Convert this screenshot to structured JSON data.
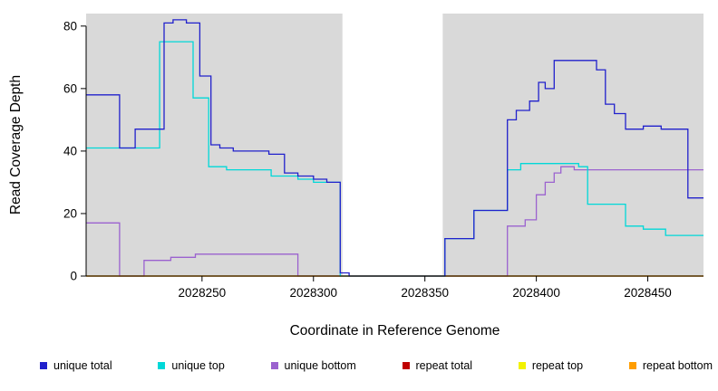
{
  "figure": {
    "panel_bg": "#d9d9d9",
    "gap_color": "#ffffff",
    "gap": {
      "x_start": 2028313,
      "x_end": 2028358
    }
  },
  "chart_data": {
    "type": "line",
    "step": "after",
    "title": "",
    "xlabel": "Coordinate in Reference Genome",
    "ylabel": "Read Coverage Depth",
    "xlim": [
      2028198,
      2028475
    ],
    "ylim": [
      0,
      84
    ],
    "x_ticks": [
      2028250,
      2028300,
      2028350,
      2028400,
      2028450
    ],
    "y_ticks": [
      0,
      20,
      40,
      60,
      80
    ],
    "grid": false,
    "legend_position": "bottom",
    "series": [
      {
        "name": "unique total",
        "color": "#2121cc",
        "points": [
          [
            2028198,
            58
          ],
          [
            2028213,
            41
          ],
          [
            2028220,
            47
          ],
          [
            2028233,
            81
          ],
          [
            2028237,
            82
          ],
          [
            2028243,
            81
          ],
          [
            2028249,
            64
          ],
          [
            2028254,
            42
          ],
          [
            2028258,
            41
          ],
          [
            2028264,
            40
          ],
          [
            2028280,
            39
          ],
          [
            2028287,
            33
          ],
          [
            2028293,
            32
          ],
          [
            2028300,
            31
          ],
          [
            2028306,
            30
          ],
          [
            2028312,
            1
          ],
          [
            2028316,
            0
          ],
          [
            2028359,
            12
          ],
          [
            2028372,
            21
          ],
          [
            2028387,
            50
          ],
          [
            2028391,
            53
          ],
          [
            2028397,
            56
          ],
          [
            2028401,
            62
          ],
          [
            2028404,
            60
          ],
          [
            2028408,
            69
          ],
          [
            2028427,
            66
          ],
          [
            2028431,
            55
          ],
          [
            2028435,
            52
          ],
          [
            2028440,
            47
          ],
          [
            2028448,
            48
          ],
          [
            2028456,
            47
          ],
          [
            2028468,
            25
          ]
        ]
      },
      {
        "name": "unique top",
        "color": "#00d8d8",
        "points": [
          [
            2028198,
            41
          ],
          [
            2028231,
            75
          ],
          [
            2028246,
            57
          ],
          [
            2028253,
            35
          ],
          [
            2028261,
            34
          ],
          [
            2028281,
            32
          ],
          [
            2028293,
            31
          ],
          [
            2028300,
            30
          ],
          [
            2028312,
            0
          ],
          [
            2028359,
            12
          ],
          [
            2028372,
            21
          ],
          [
            2028387,
            34
          ],
          [
            2028393,
            36
          ],
          [
            2028419,
            35
          ],
          [
            2028423,
            23
          ],
          [
            2028440,
            16
          ],
          [
            2028448,
            15
          ],
          [
            2028458,
            13
          ]
        ]
      },
      {
        "name": "unique bottom",
        "color": "#9b62cf",
        "points": [
          [
            2028198,
            17
          ],
          [
            2028213,
            0
          ],
          [
            2028224,
            5
          ],
          [
            2028236,
            6
          ],
          [
            2028247,
            7
          ],
          [
            2028293,
            0
          ],
          [
            2028387,
            16
          ],
          [
            2028395,
            18
          ],
          [
            2028400,
            26
          ],
          [
            2028404,
            30
          ],
          [
            2028408,
            33
          ],
          [
            2028411,
            35
          ],
          [
            2028417,
            34
          ]
        ]
      },
      {
        "name": "repeat total",
        "color": "#bf0000",
        "points": [
          [
            2028198,
            0
          ]
        ]
      },
      {
        "name": "repeat top",
        "color": "#f2f200",
        "points": [
          [
            2028198,
            0
          ]
        ]
      },
      {
        "name": "repeat bottom",
        "color": "#ff9d00",
        "points": [
          [
            2028198,
            0
          ]
        ]
      }
    ]
  }
}
